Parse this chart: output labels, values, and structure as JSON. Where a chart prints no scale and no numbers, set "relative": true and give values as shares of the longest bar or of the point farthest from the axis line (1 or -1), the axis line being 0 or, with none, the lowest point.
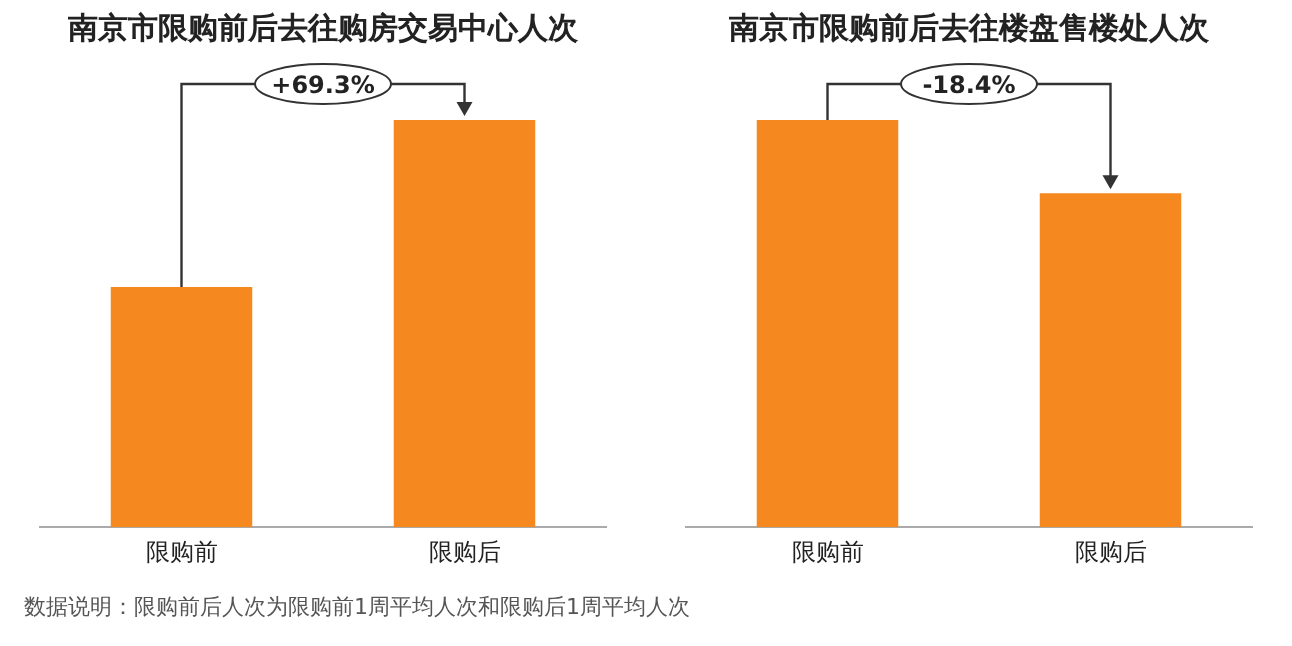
{
  "chart_data": [
    {
      "type": "bar",
      "title": "南京市限购前后去往购房交易中心人次",
      "categories": [
        "限购前",
        "限购后"
      ],
      "values": [
        0.59,
        1
      ],
      "color": "#f5891f",
      "relative": true,
      "grid": false,
      "legend": false,
      "annotations": [
        "+69.3%",
        "数据说明：限购前后人次为限购前1周平均人次和限购后1周平均人次"
      ]
    },
    {
      "type": "bar",
      "title": "南京市限购前后去往楼盘售楼处人次",
      "categories": [
        "限购前",
        "限购后"
      ],
      "values": [
        1,
        0.82
      ],
      "color": "#f5891f",
      "relative": true,
      "grid": false,
      "legend": false,
      "annotations": [
        "-18.4%"
      ]
    }
  ]
}
